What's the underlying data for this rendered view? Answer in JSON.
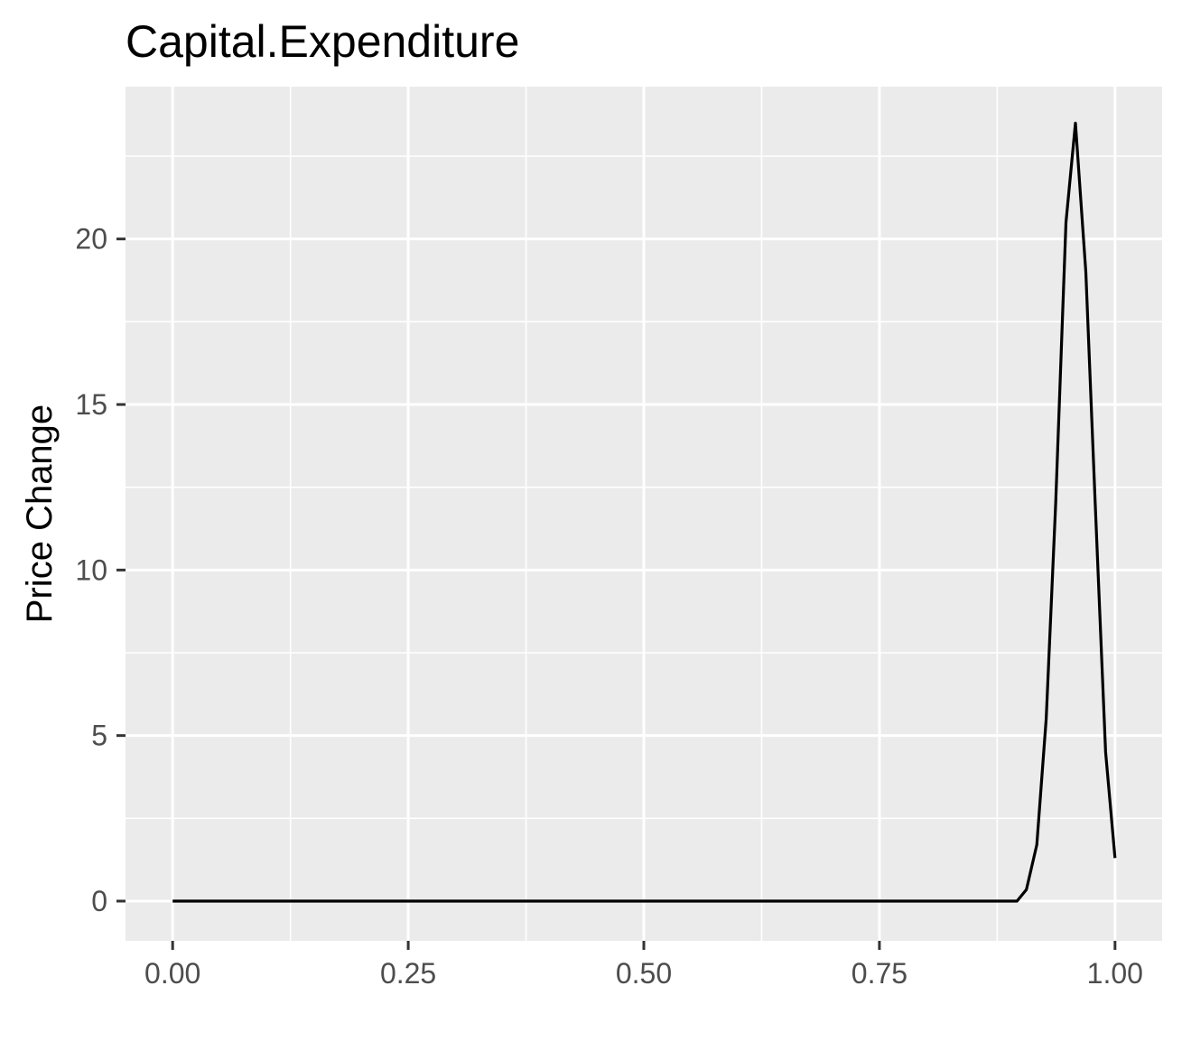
{
  "chart_data": {
    "type": "line",
    "title": "Capital.Expenditure",
    "xlabel": "",
    "ylabel": "Price Change",
    "xlim": [
      -0.05,
      1.05
    ],
    "ylim": [
      -1.2,
      24.6
    ],
    "x_ticks": [
      0.0,
      0.25,
      0.5,
      0.75,
      1.0
    ],
    "x_tick_labels": [
      "0.00",
      "0.25",
      "0.50",
      "0.75",
      "1.00"
    ],
    "y_ticks": [
      0,
      5,
      10,
      15,
      20
    ],
    "y_tick_labels": [
      "0",
      "5",
      "10",
      "15",
      "20"
    ],
    "grid": true,
    "legend": "none",
    "colors": {
      "panel_background": "#ebebeb",
      "grid_line": "#ffffff",
      "line": "#000000",
      "tick_mark": "#333333",
      "tick_label": "#4d4d4d"
    },
    "series": [
      {
        "x": [
          0.0,
          0.1,
          0.2,
          0.3,
          0.4,
          0.5,
          0.6,
          0.7,
          0.8,
          0.85,
          0.896,
          0.906,
          0.917,
          0.927,
          0.937,
          0.948,
          0.958,
          0.969,
          0.979,
          0.99,
          1.0
        ],
        "values": [
          0,
          0,
          0,
          0,
          0,
          0,
          0,
          0,
          0,
          0,
          0,
          0.35,
          1.7,
          5.5,
          12.0,
          20.5,
          23.5,
          19.0,
          12.0,
          4.5,
          1.3
        ]
      }
    ]
  }
}
